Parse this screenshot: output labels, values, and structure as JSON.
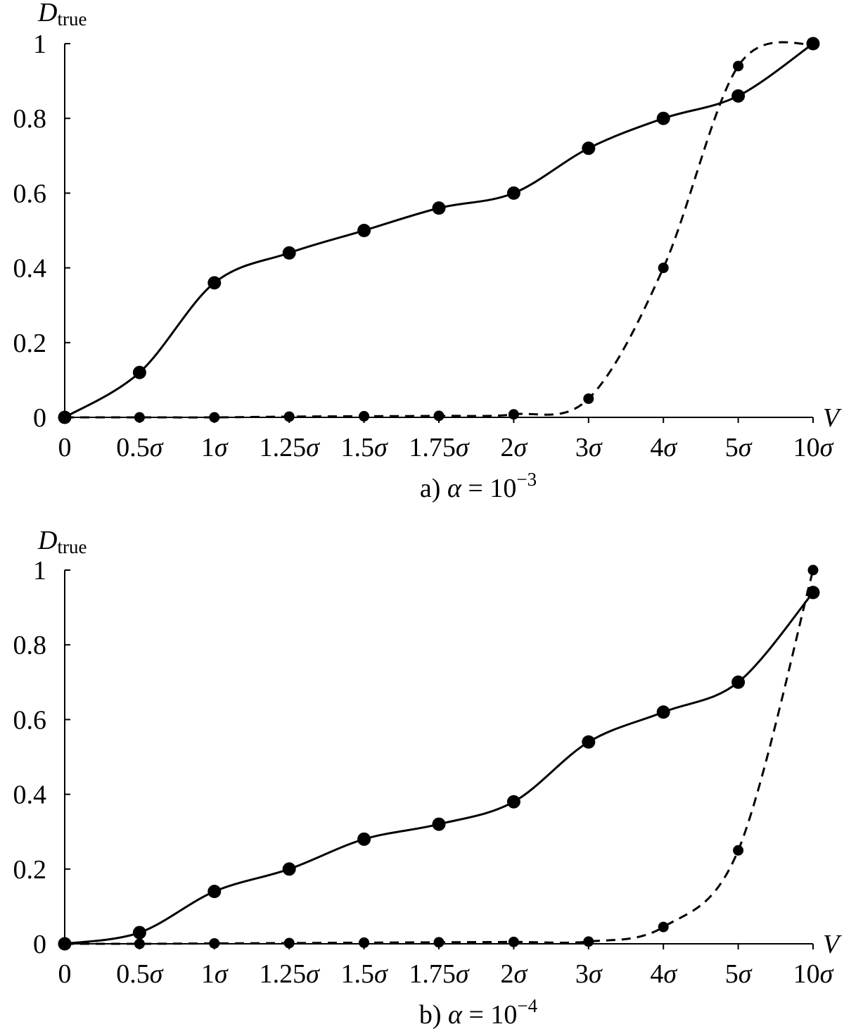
{
  "chart_data": [
    {
      "type": "line",
      "title": "",
      "caption": {
        "prefix": "a)",
        "variable": "α",
        "equals": "=",
        "base": "10",
        "exponent": "−3"
      },
      "ylabel": {
        "main": "D",
        "sub": "true"
      },
      "xlabel": "V",
      "categories": [
        "0",
        "0.5σ",
        "1σ",
        "1.25σ",
        "1.5σ",
        "1.75σ",
        "2σ",
        "3σ",
        "4σ",
        "5σ",
        "10σ"
      ],
      "yticks": [
        "0",
        "0.2",
        "0.4",
        "0.6",
        "0.8",
        "1"
      ],
      "ylim": [
        0,
        1
      ],
      "grid": false,
      "series": [
        {
          "style": "solid",
          "values": [
            0,
            0.12,
            0.36,
            0.44,
            0.5,
            0.56,
            0.6,
            0.72,
            0.8,
            0.86,
            1.0
          ]
        },
        {
          "style": "dashed",
          "values": [
            0,
            0,
            0,
            0.002,
            0.003,
            0.004,
            0.008,
            0.05,
            0.4,
            0.94,
            1.0
          ]
        }
      ]
    },
    {
      "type": "line",
      "title": "",
      "caption": {
        "prefix": "b)",
        "variable": "α",
        "equals": "=",
        "base": "10",
        "exponent": "−4"
      },
      "ylabel": {
        "main": "D",
        "sub": "true"
      },
      "xlabel": "V",
      "categories": [
        "0",
        "0.5σ",
        "1σ",
        "1.25σ",
        "1.5σ",
        "1.75σ",
        "2σ",
        "3σ",
        "4σ",
        "5σ",
        "10σ"
      ],
      "yticks": [
        "0",
        "0.2",
        "0.4",
        "0.6",
        "0.8",
        "1"
      ],
      "ylim": [
        0,
        1
      ],
      "grid": false,
      "series": [
        {
          "style": "solid",
          "values": [
            0,
            0.03,
            0.14,
            0.2,
            0.28,
            0.32,
            0.38,
            0.54,
            0.62,
            0.7,
            0.94
          ]
        },
        {
          "style": "dashed",
          "values": [
            0,
            0,
            0.001,
            0.002,
            0.003,
            0.004,
            0.005,
            0.006,
            0.045,
            0.25,
            1.0
          ]
        }
      ]
    }
  ]
}
